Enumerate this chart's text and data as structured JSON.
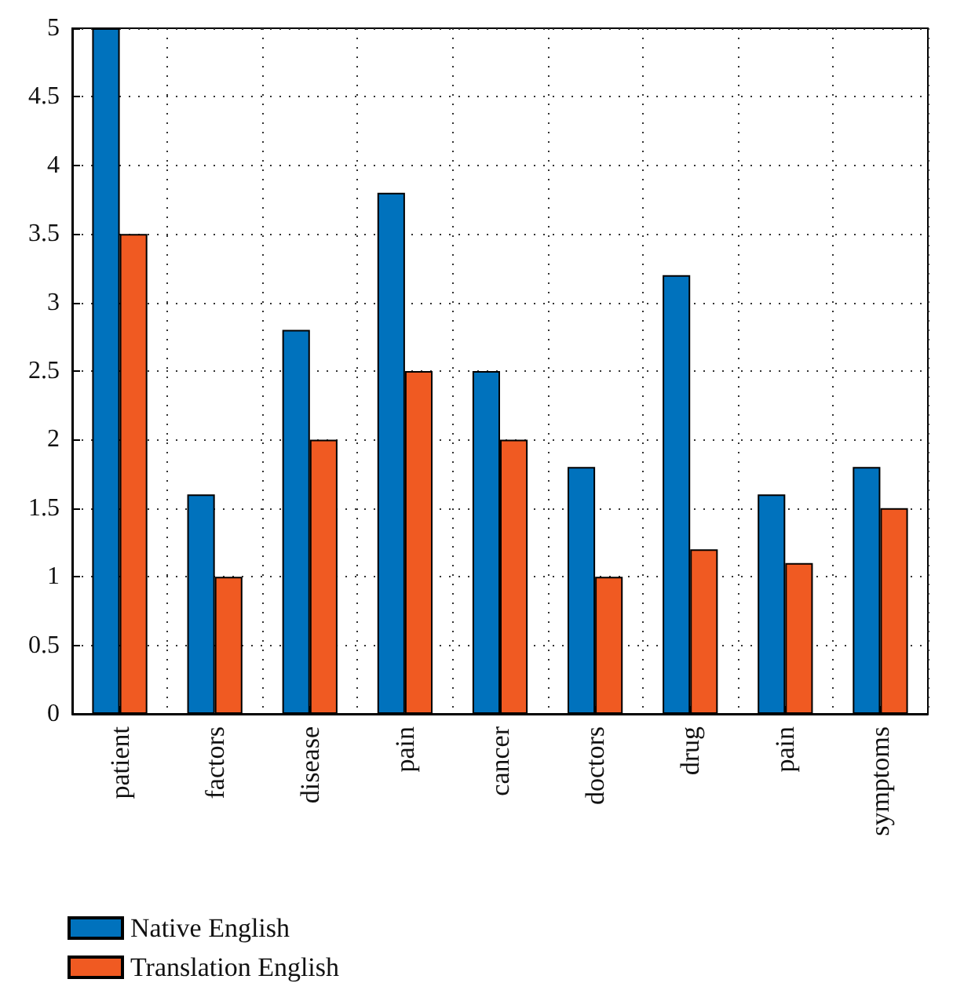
{
  "chart_data": {
    "type": "bar",
    "categories": [
      "patient",
      "factors",
      "disease",
      "pain",
      "cancer",
      "doctors",
      "drug",
      "pain",
      "symptoms"
    ],
    "series": [
      {
        "name": "Native English",
        "color": "#0072bd",
        "values": [
          5,
          1.6,
          2.8,
          3.8,
          2.5,
          1.8,
          3.2,
          1.6,
          1.8
        ]
      },
      {
        "name": "Translation English",
        "color": "#f05a22",
        "values": [
          3.5,
          1,
          2,
          2.5,
          2,
          1,
          1.2,
          1.1,
          1.5
        ]
      }
    ],
    "ylim": [
      0,
      5
    ],
    "yticks": [
      0,
      0.5,
      1,
      1.5,
      2,
      2.5,
      3,
      3.5,
      4,
      4.5,
      5
    ],
    "grid": true,
    "legend": "bottom left"
  }
}
